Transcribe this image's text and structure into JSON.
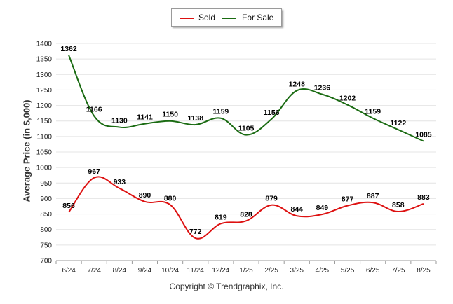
{
  "legend": {
    "sold_label": "Sold",
    "for_sale_label": "For Sale"
  },
  "copyright": "Copyright © Trendgraphix, Inc.",
  "colors": {
    "sold": "#dd1111",
    "for_sale": "#1a6b12",
    "grid": "#e4e4e4"
  },
  "chart_data": {
    "type": "line",
    "title": "",
    "xlabel": "",
    "ylabel": "Average Price (in $,000)",
    "categories": [
      "6/24",
      "7/24",
      "8/24",
      "9/24",
      "10/24",
      "11/24",
      "12/24",
      "1/25",
      "2/25",
      "3/25",
      "4/25",
      "5/25",
      "6/25",
      "7/25",
      "8/25"
    ],
    "ylim": [
      700,
      1400
    ],
    "yticks": [
      700,
      750,
      800,
      850,
      900,
      950,
      1000,
      1050,
      1100,
      1150,
      1200,
      1250,
      1300,
      1350,
      1400
    ],
    "grid": true,
    "legend_position": "top-center",
    "series": [
      {
        "name": "Sold",
        "values": [
          856,
          967,
          933,
          890,
          880,
          772,
          819,
          828,
          879,
          844,
          849,
          877,
          887,
          858,
          883
        ]
      },
      {
        "name": "For Sale",
        "values": [
          1362,
          1166,
          1130,
          1141,
          1150,
          1138,
          1159,
          1105,
          1156,
          1248,
          1236,
          1202,
          1159,
          1122,
          1085
        ]
      }
    ]
  }
}
